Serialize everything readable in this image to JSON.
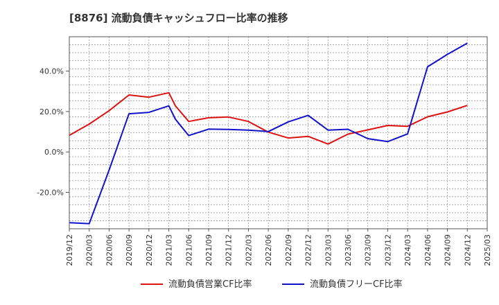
{
  "chart_data": {
    "type": "line",
    "title": "[8876]  流動負債キャッシュフロー比率の推移",
    "xlabel": "",
    "ylabel": "",
    "ylim": [
      -38,
      57
    ],
    "yticks": [
      40,
      20,
      0,
      -20
    ],
    "y_tick_labels": [
      "40.0%",
      "20.0%",
      "0.0%",
      "-20.0%"
    ],
    "x_tick_labels": [
      "2019/12",
      "2020/03",
      "2020/06",
      "2020/09",
      "2020/12",
      "2021/03",
      "2021/06",
      "2021/09",
      "2021/12",
      "2022/03",
      "2022/06",
      "2022/09",
      "2022/12",
      "2023/03",
      "2023/06",
      "2023/09",
      "2023/12",
      "2024/03",
      "2024/06",
      "2024/09",
      "2024/12",
      "2025/03"
    ],
    "grid": true,
    "legend_position": "bottom",
    "series": [
      {
        "name": "流動負債営業CF比率",
        "color": "#dd1111",
        "x": [
          "2019/12",
          "2020/03",
          "2020/06",
          "2020/09",
          "2020/12",
          "2021/03",
          "2021/04",
          "2021/06",
          "2021/09",
          "2021/12",
          "2022/03",
          "2022/06",
          "2022/09",
          "2022/12",
          "2023/03",
          "2023/06",
          "2023/09",
          "2023/12",
          "2024/03",
          "2024/06",
          "2024/09",
          "2024/12"
        ],
        "values": [
          8.2,
          13.8,
          20.4,
          28.2,
          27.1,
          29.3,
          22.8,
          15.1,
          16.9,
          17.3,
          15.1,
          9.8,
          6.9,
          7.7,
          3.9,
          8.8,
          10.9,
          13.1,
          12.7,
          17.4,
          19.8,
          23.0
        ]
      },
      {
        "name": "流動負債フリーCF比率",
        "color": "#1111cc",
        "x": [
          "2019/12",
          "2020/03",
          "2020/06",
          "2020/09",
          "2020/12",
          "2021/03",
          "2021/04",
          "2021/06",
          "2021/09",
          "2021/12",
          "2022/03",
          "2022/06",
          "2022/09",
          "2022/12",
          "2023/03",
          "2023/06",
          "2023/09",
          "2023/12",
          "2024/03",
          "2024/06",
          "2024/09",
          "2024/12"
        ],
        "values": [
          -35.0,
          -35.5,
          -9.0,
          18.9,
          19.6,
          22.8,
          16.2,
          8.1,
          11.3,
          11.1,
          10.8,
          10.1,
          14.9,
          18.1,
          10.8,
          11.2,
          6.6,
          5.1,
          8.9,
          42.1,
          48.3,
          53.8
        ]
      }
    ]
  }
}
